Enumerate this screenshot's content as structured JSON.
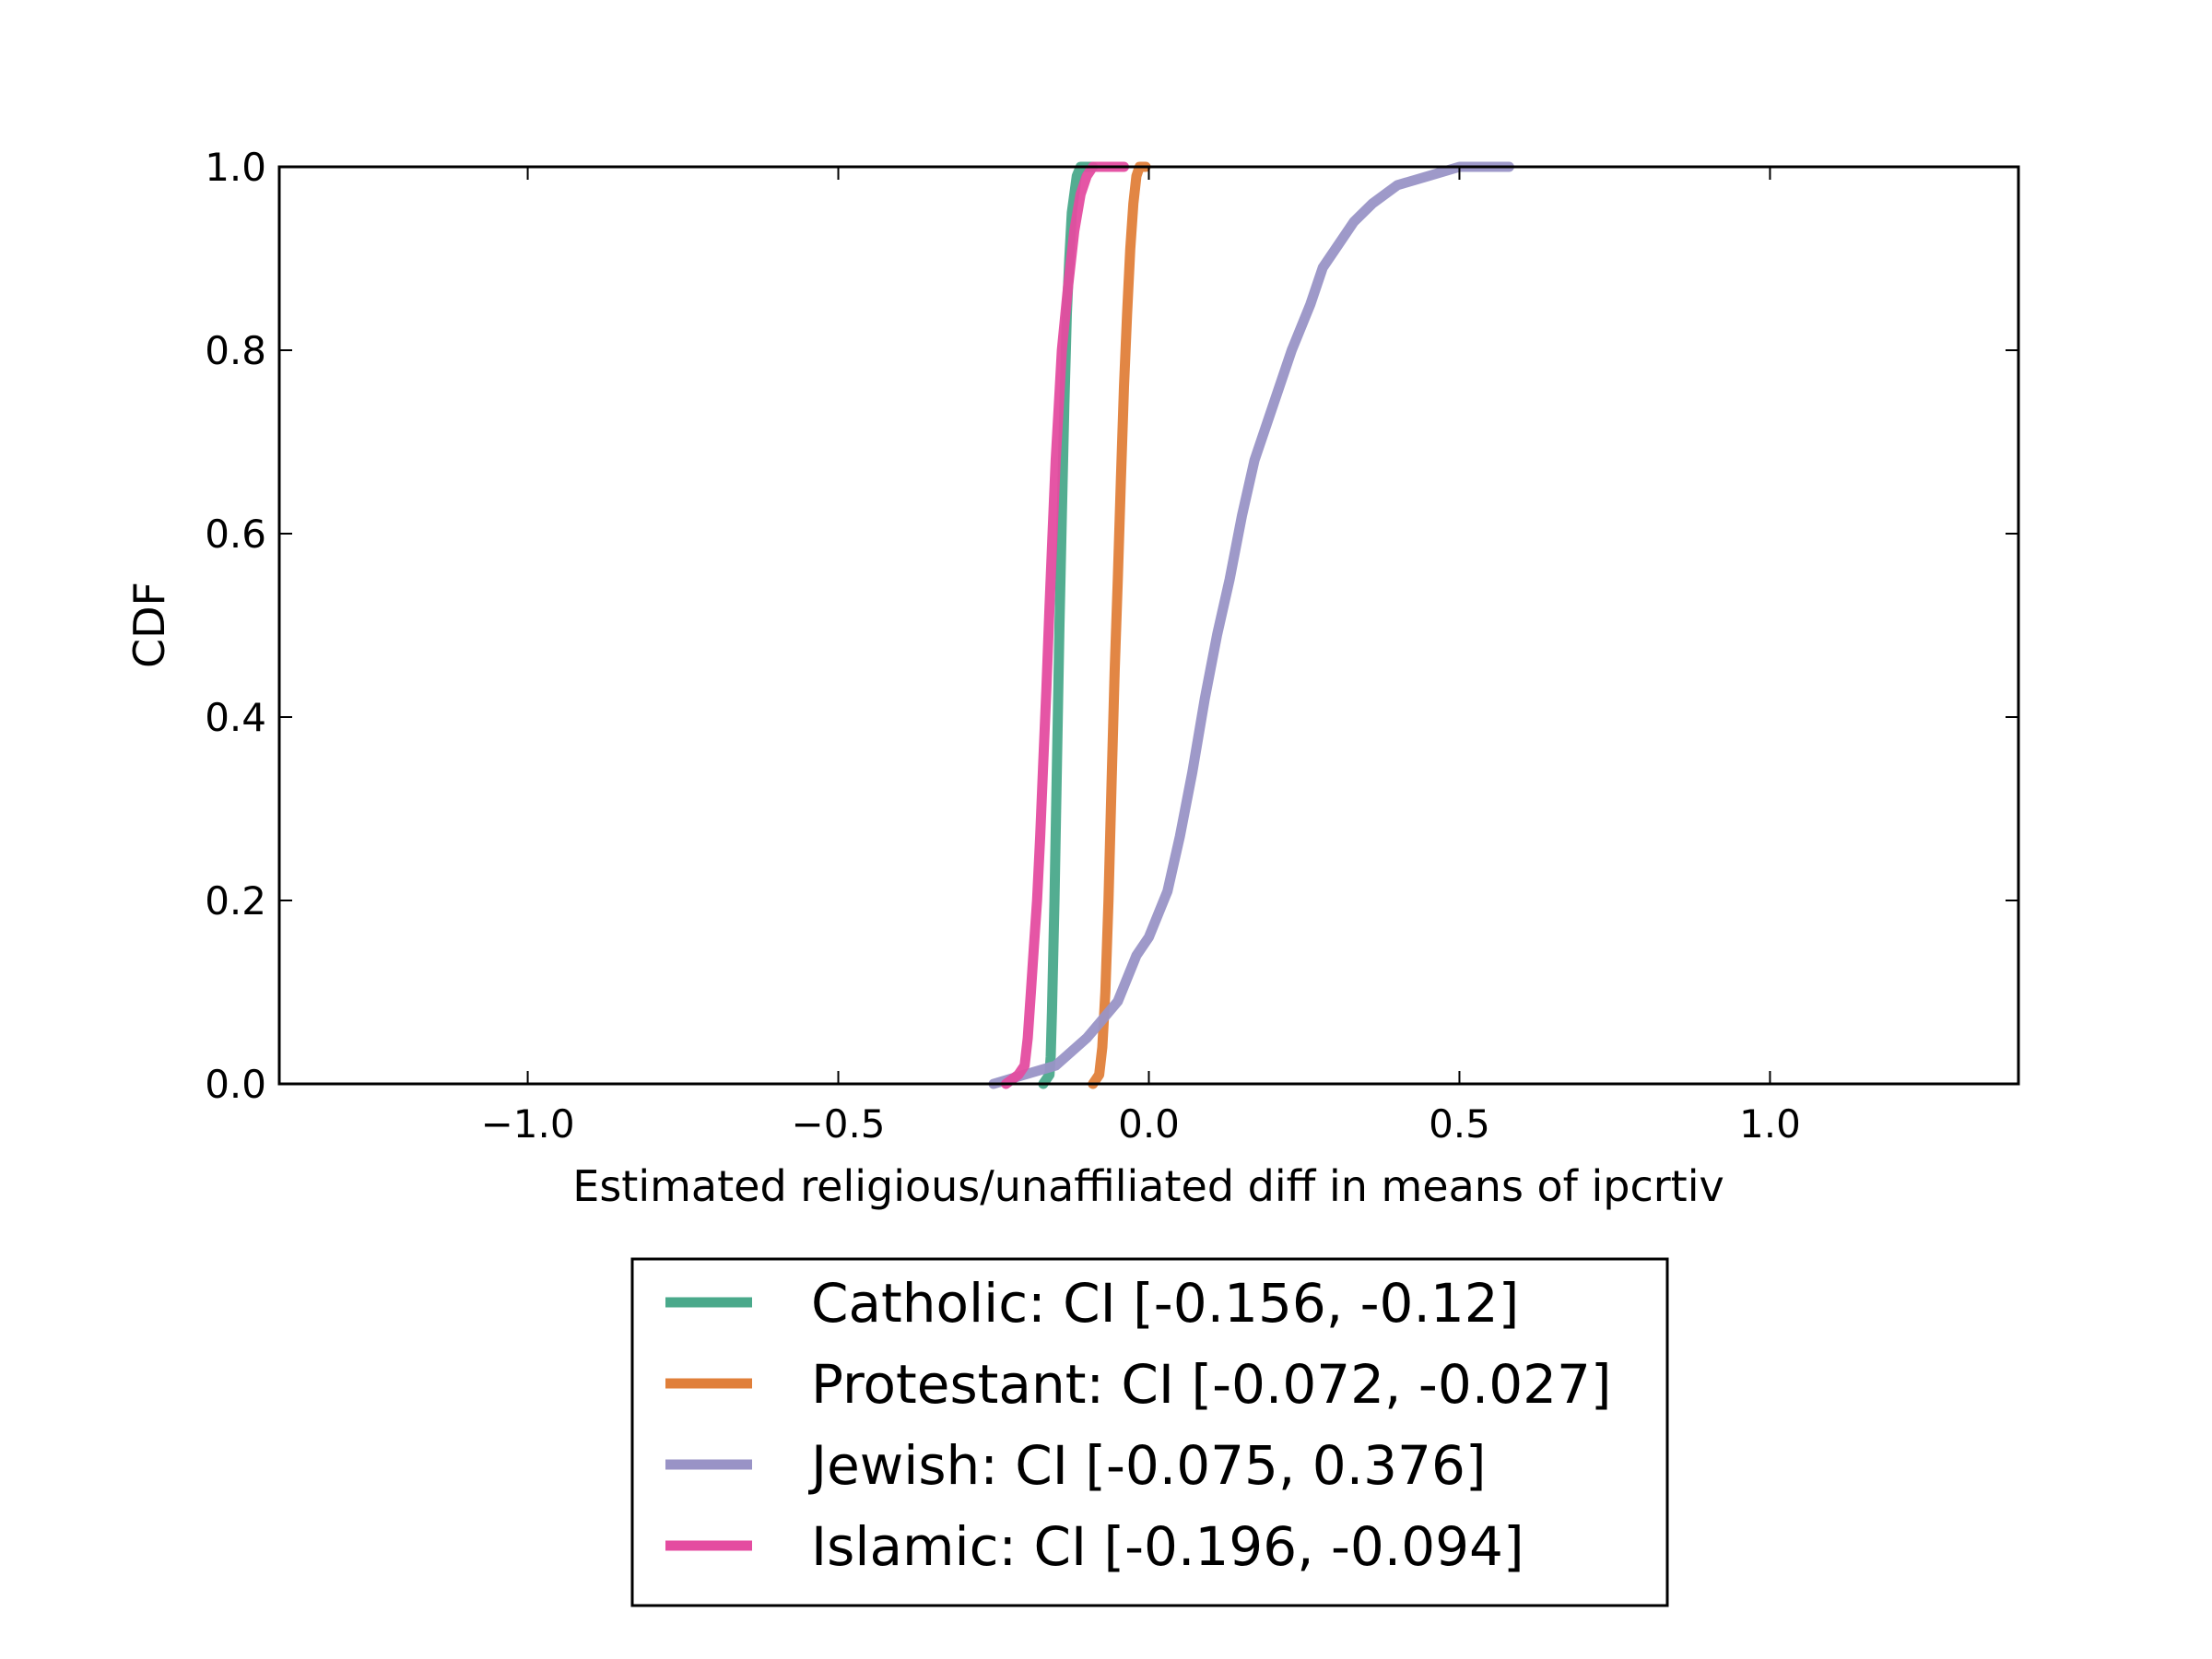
{
  "chart_data": {
    "type": "line",
    "title": "",
    "xlabel": "Estimated religious/unaffiliated diff in means of ipcrtiv",
    "ylabel": "CDF",
    "xlim": [
      -1.4,
      1.4
    ],
    "ylim": [
      0.0,
      1.0
    ],
    "x_ticks": [
      {
        "value": -1.0,
        "label": "−1.0"
      },
      {
        "value": -0.5,
        "label": "−0.5"
      },
      {
        "value": 0.0,
        "label": "0.0"
      },
      {
        "value": 0.5,
        "label": "0.5"
      },
      {
        "value": 1.0,
        "label": "1.0"
      }
    ],
    "y_ticks": [
      {
        "value": 0.0,
        "label": "0.0"
      },
      {
        "value": 0.2,
        "label": "0.2"
      },
      {
        "value": 0.4,
        "label": "0.4"
      },
      {
        "value": 0.6,
        "label": "0.6"
      },
      {
        "value": 0.8,
        "label": "0.8"
      },
      {
        "value": 1.0,
        "label": "1.0"
      }
    ],
    "grid": false,
    "legend_position": "below",
    "series": [
      {
        "name": "Catholic: CI [-0.156, -0.12]",
        "color": "#4aa98b",
        "x": [
          -0.17,
          -0.16,
          -0.158,
          -0.156,
          -0.152,
          -0.148,
          -0.144,
          -0.14,
          -0.136,
          -0.132,
          -0.128,
          -0.124,
          -0.12,
          -0.116,
          -0.11,
          -0.1,
          -0.09
        ],
        "y": [
          0.0,
          0.01,
          0.03,
          0.08,
          0.2,
          0.35,
          0.5,
          0.62,
          0.74,
          0.84,
          0.9,
          0.95,
          0.97,
          0.99,
          1.0,
          1.0,
          1.0
        ]
      },
      {
        "name": "Protestant: CI [-0.072, -0.027]",
        "color": "#e07f3a",
        "x": [
          -0.09,
          -0.08,
          -0.075,
          -0.07,
          -0.065,
          -0.06,
          -0.055,
          -0.05,
          -0.045,
          -0.04,
          -0.035,
          -0.03,
          -0.025,
          -0.02,
          -0.015,
          -0.005
        ],
        "y": [
          0.0,
          0.01,
          0.04,
          0.1,
          0.2,
          0.33,
          0.45,
          0.55,
          0.66,
          0.76,
          0.84,
          0.91,
          0.96,
          0.99,
          1.0,
          1.0
        ]
      },
      {
        "name": "Jewish: CI [-0.075, 0.376]",
        "color": "#9993c6",
        "x": [
          -0.25,
          -0.2,
          -0.15,
          -0.1,
          -0.05,
          -0.02,
          0.0,
          0.03,
          0.05,
          0.07,
          0.09,
          0.11,
          0.13,
          0.15,
          0.17,
          0.2,
          0.23,
          0.26,
          0.28,
          0.3,
          0.33,
          0.36,
          0.4,
          0.45,
          0.5,
          0.58
        ],
        "y": [
          0.0,
          0.01,
          0.02,
          0.05,
          0.09,
          0.14,
          0.16,
          0.21,
          0.27,
          0.34,
          0.42,
          0.49,
          0.55,
          0.62,
          0.68,
          0.74,
          0.8,
          0.85,
          0.89,
          0.91,
          0.94,
          0.96,
          0.98,
          0.99,
          1.0,
          1.0
        ]
      },
      {
        "name": "Islamic: CI [-0.196, -0.094]",
        "color": "#e44ca0",
        "x": [
          -0.23,
          -0.21,
          -0.2,
          -0.195,
          -0.19,
          -0.185,
          -0.18,
          -0.175,
          -0.17,
          -0.165,
          -0.16,
          -0.155,
          -0.15,
          -0.145,
          -0.14,
          -0.13,
          -0.12,
          -0.11,
          -0.1,
          -0.09,
          -0.07,
          -0.04
        ],
        "y": [
          0.0,
          0.01,
          0.02,
          0.05,
          0.1,
          0.15,
          0.2,
          0.27,
          0.35,
          0.43,
          0.52,
          0.6,
          0.68,
          0.74,
          0.8,
          0.87,
          0.93,
          0.97,
          0.99,
          1.0,
          1.0,
          1.0
        ]
      }
    ]
  }
}
